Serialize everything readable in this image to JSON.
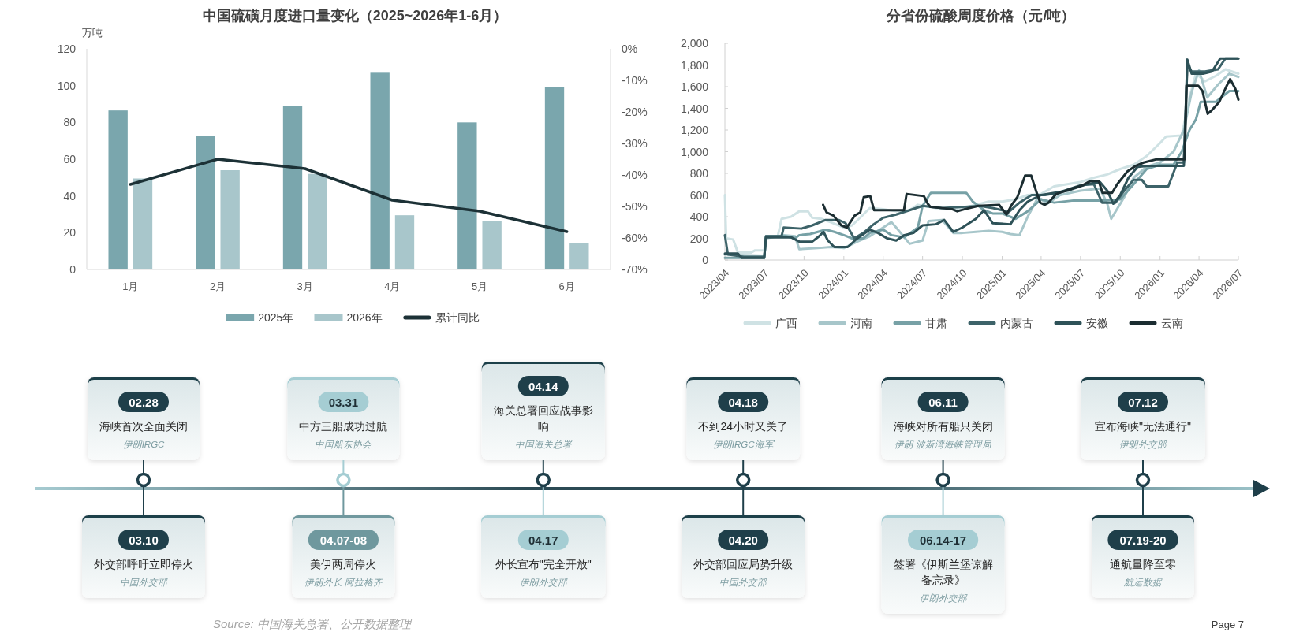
{
  "chart_data": [
    {
      "type": "bar",
      "title": "中国硫磺月度进口量变化（2025~2026年1-6月）",
      "ylabel": "万吨",
      "categories": [
        "1月",
        "2月",
        "3月",
        "4月",
        "5月",
        "6月"
      ],
      "series": [
        {
          "name": "2025年",
          "color": "#7aa6ad",
          "values": [
            86.5,
            72.5,
            89,
            107,
            80,
            99
          ]
        },
        {
          "name": "2026年",
          "color": "#a8c6cb",
          "values": [
            49.5,
            54,
            52,
            29.5,
            26.5,
            14.5
          ]
        },
        {
          "name": "累计同比",
          "type": "line",
          "axis": "y2",
          "color": "#1c3136",
          "values": [
            -43,
            -35,
            -38,
            -48,
            -51.5,
            -58
          ]
        }
      ],
      "ylim": [
        0,
        120
      ],
      "yticks": [
        0,
        20,
        40,
        60,
        80,
        100,
        120
      ],
      "y2lim": [
        -70,
        0
      ],
      "y2ticks": [
        {
          "value": 0,
          "label": "0%"
        },
        {
          "value": -10,
          "label": "-10%"
        },
        {
          "value": -20,
          "label": "-20%"
        },
        {
          "value": -30,
          "label": "-30%"
        },
        {
          "value": -40,
          "label": "-40%"
        },
        {
          "value": -50,
          "label": "-50%"
        },
        {
          "value": -60,
          "label": "-60%"
        },
        {
          "value": -70,
          "label": "-70%"
        }
      ],
      "legend": "bottom"
    },
    {
      "type": "line",
      "title": "分省份硫酸周度价格（元/吨）",
      "series": [
        {
          "name": "广西",
          "color": "#cfe2e4",
          "x": [
            "2023-04-01",
            "2023-04-04",
            "2023-04-20",
            "2023-05-01",
            "2023-06-01",
            "2023-06-10",
            "2023-07-01",
            "2023-07-05",
            "2023-08-01",
            "2023-08-10",
            "2023-09-01",
            "2023-09-20",
            "2023-10-10",
            "2023-10-20",
            "2023-11-10",
            "2023-12-01",
            "2024-01-01",
            "2024-01-20",
            "2024-02-10",
            "2024-03-01",
            "2024-04-01",
            "2024-05-01",
            "2024-06-01",
            "2024-06-20",
            "2024-08-01",
            "2024-09-01",
            "2024-10-01",
            "2024-11-01",
            "2024-12-01",
            "2025-01-01",
            "2025-02-01",
            "2025-03-01",
            "2025-04-01",
            "2025-05-01",
            "2025-07-01",
            "2025-08-01",
            "2025-09-01",
            "2025-10-01",
            "2025-11-01",
            "2025-12-01",
            "2026-01-01",
            "2026-01-15",
            "2026-02-20",
            "2026-03-10",
            "2026-03-25",
            "2026-04-15",
            "2026-05-10",
            "2026-06-01",
            "2026-07-01"
          ],
          "values": [
            600,
            200,
            190,
            70,
            70,
            90,
            90,
            210,
            215,
            380,
            400,
            450,
            450,
            390,
            380,
            350,
            300,
            320,
            400,
            480,
            470,
            450,
            460,
            510,
            480,
            470,
            480,
            510,
            540,
            540,
            560,
            600,
            610,
            680,
            720,
            760,
            790,
            840,
            880,
            960,
            1080,
            1140,
            1150,
            1500,
            1720,
            1650,
            1700,
            1760,
            1720
          ]
        },
        {
          "name": "河南",
          "color": "#a7c6ca",
          "x": [
            "2023-04-01",
            "2023-07-01",
            "2023-07-05",
            "2023-08-15",
            "2023-09-10",
            "2023-09-20",
            "2023-11-01",
            "2023-12-01",
            "2024-01-01",
            "2024-02-01",
            "2024-03-01",
            "2024-04-01",
            "2024-04-20",
            "2024-05-01",
            "2024-06-01",
            "2024-07-01",
            "2024-07-15",
            "2024-08-15",
            "2024-09-10",
            "2024-10-01",
            "2024-11-01",
            "2024-12-01",
            "2025-01-01",
            "2025-01-20",
            "2025-02-10",
            "2025-03-01",
            "2025-03-25",
            "2025-04-15",
            "2025-05-15",
            "2025-07-01",
            "2025-08-15",
            "2025-09-01",
            "2025-09-10",
            "2025-10-10",
            "2025-11-01",
            "2025-12-01",
            "2026-01-01",
            "2026-02-01",
            "2026-02-25",
            "2026-03-15",
            "2026-04-01",
            "2026-04-20",
            "2026-05-15",
            "2026-06-10",
            "2026-07-01"
          ],
          "values": [
            50,
            40,
            200,
            230,
            220,
            100,
            110,
            120,
            110,
            170,
            220,
            300,
            350,
            300,
            150,
            180,
            360,
            370,
            250,
            250,
            260,
            270,
            260,
            240,
            230,
            400,
            580,
            520,
            600,
            640,
            660,
            520,
            380,
            580,
            760,
            860,
            900,
            1000,
            1200,
            1550,
            1750,
            1500,
            1620,
            1720,
            1690
          ]
        },
        {
          "name": "甘肃",
          "color": "#77a1a6",
          "x": [
            "2023-04-01",
            "2023-07-01",
            "2023-07-05",
            "2023-08-20",
            "2023-09-10",
            "2023-09-20",
            "2023-10-15",
            "2023-11-20",
            "2023-12-10",
            "2024-01-01",
            "2024-01-20",
            "2024-02-15",
            "2024-03-01",
            "2024-04-01",
            "2024-04-20",
            "2024-05-20",
            "2024-06-20",
            "2024-07-01",
            "2024-07-20",
            "2024-10-10",
            "2024-10-25",
            "2024-11-20",
            "2024-12-10",
            "2025-01-01",
            "2025-02-01",
            "2025-03-01",
            "2025-04-01",
            "2025-05-01",
            "2025-06-15",
            "2025-08-01",
            "2025-09-01",
            "2025-10-01",
            "2025-11-01",
            "2025-12-01",
            "2026-01-01",
            "2026-02-01",
            "2026-02-20",
            "2026-03-10",
            "2026-03-25",
            "2026-04-05",
            "2026-05-10",
            "2026-06-10",
            "2026-07-01"
          ],
          "values": [
            20,
            20,
            220,
            220,
            200,
            230,
            240,
            280,
            260,
            230,
            200,
            200,
            250,
            280,
            230,
            210,
            300,
            500,
            620,
            620,
            540,
            460,
            430,
            430,
            380,
            450,
            560,
            530,
            550,
            550,
            550,
            560,
            700,
            840,
            880,
            880,
            1000,
            1200,
            1300,
            1460,
            1460,
            1560,
            1560
          ]
        },
        {
          "name": "内蒙古",
          "color": "#3d6369",
          "x": [
            "2023-04-01",
            "2023-04-08",
            "2023-05-15",
            "2023-07-01",
            "2023-07-05",
            "2023-08-10",
            "2023-08-15",
            "2023-09-25",
            "2023-10-20",
            "2023-11-20",
            "2023-12-20",
            "2024-01-05",
            "2024-01-25",
            "2024-02-15",
            "2024-03-10",
            "2024-04-01",
            "2024-05-01",
            "2024-06-01",
            "2024-07-01",
            "2024-08-15",
            "2024-10-01",
            "2024-11-10",
            "2024-12-10",
            "2025-01-01",
            "2025-01-15",
            "2025-02-10",
            "2025-03-10",
            "2025-04-10",
            "2025-05-10",
            "2025-07-01",
            "2025-08-01",
            "2025-08-20",
            "2025-09-20",
            "2025-10-10",
            "2025-11-01",
            "2025-11-20",
            "2025-12-01",
            "2026-01-20",
            "2026-02-10",
            "2026-02-25",
            "2026-03-05",
            "2026-03-15",
            "2026-04-15",
            "2026-05-15",
            "2026-06-01",
            "2026-07-01"
          ],
          "values": [
            230,
            50,
            30,
            30,
            220,
            220,
            300,
            290,
            320,
            370,
            370,
            340,
            200,
            250,
            330,
            390,
            420,
            460,
            500,
            480,
            490,
            500,
            480,
            460,
            440,
            530,
            600,
            600,
            620,
            690,
            700,
            530,
            530,
            640,
            740,
            740,
            680,
            680,
            900,
            900,
            1800,
            1740,
            1740,
            1760,
            1860,
            1860
          ]
        },
        {
          "name": "安徽",
          "color": "#2e5258",
          "x": [
            "2023-04-01",
            "2023-05-01",
            "2023-05-10",
            "2023-07-01",
            "2023-07-05",
            "2023-09-01",
            "2023-09-20",
            "2023-10-20",
            "2023-11-05",
            "2023-11-15",
            "2023-11-25",
            "2023-12-10",
            "2024-01-10",
            "2024-02-01",
            "2024-03-01",
            "2024-03-20",
            "2024-04-10",
            "2024-05-01",
            "2024-05-20",
            "2024-06-10",
            "2024-07-01",
            "2024-08-01",
            "2024-08-20",
            "2024-09-10",
            "2024-10-01",
            "2024-11-01",
            "2024-11-20",
            "2024-12-10",
            "2025-01-20",
            "2025-02-10",
            "2025-03-01",
            "2025-04-01",
            "2025-06-01",
            "2025-07-15",
            "2025-08-15",
            "2025-09-01",
            "2025-09-15",
            "2025-10-01",
            "2025-10-20",
            "2025-11-10",
            "2025-12-10",
            "2026-02-25",
            "2026-03-05",
            "2026-03-15",
            "2026-04-10",
            "2026-05-01",
            "2026-05-20",
            "2026-07-01"
          ],
          "values": [
            60,
            60,
            20,
            20,
            210,
            210,
            170,
            170,
            220,
            260,
            180,
            120,
            120,
            200,
            280,
            250,
            200,
            180,
            230,
            250,
            320,
            330,
            370,
            260,
            300,
            380,
            460,
            340,
            330,
            460,
            540,
            600,
            640,
            700,
            720,
            640,
            520,
            600,
            760,
            860,
            870,
            870,
            1850,
            1720,
            1720,
            1740,
            1860,
            1860
          ]
        },
        {
          "name": "云南",
          "color": "#1b2d31",
          "x": [
            "2023-11-14",
            "2023-11-22",
            "2023-12-08",
            "2023-12-26",
            "2024-01-08",
            "2024-01-26",
            "2024-02-08",
            "2024-02-16",
            "2024-03-02",
            "2024-03-11",
            "2024-05-19",
            "2024-05-25",
            "2024-07-04",
            "2024-07-13",
            "2024-07-19",
            "2024-09-07",
            "2024-09-19",
            "2024-10-07",
            "2024-11-07",
            "2024-12-25",
            "2025-01-11",
            "2025-01-23",
            "2025-02-05",
            "2025-02-23",
            "2025-03-09",
            "2025-03-21",
            "2025-03-30",
            "2025-04-09",
            "2025-04-18",
            "2025-05-06",
            "2025-06-12",
            "2025-07-06",
            "2025-07-24",
            "2025-08-12",
            "2025-08-21",
            "2025-09-12",
            "2025-09-24",
            "2025-10-18",
            "2025-11-06",
            "2025-11-24",
            "2025-12-24",
            "2026-02-27",
            "2026-03-03",
            "2026-03-30",
            "2026-04-09",
            "2026-04-21",
            "2026-04-30",
            "2026-05-18",
            "2026-06-03",
            "2026-06-12",
            "2026-06-24",
            "2026-07-01"
          ],
          "values": [
            510,
            440,
            410,
            320,
            300,
            410,
            440,
            580,
            590,
            460,
            460,
            610,
            590,
            520,
            490,
            470,
            450,
            470,
            500,
            510,
            420,
            510,
            580,
            780,
            780,
            630,
            530,
            510,
            530,
            610,
            660,
            690,
            730,
            730,
            620,
            620,
            700,
            820,
            870,
            900,
            930,
            930,
            1610,
            1610,
            1560,
            1350,
            1380,
            1460,
            1600,
            1670,
            1580,
            1480
          ]
        }
      ],
      "xlim": [
        "2023-04",
        "2026-07"
      ],
      "xticks": [
        {
          "value": "2023-04",
          "label": "2023/04"
        },
        {
          "value": "2023-07",
          "label": "2023/07"
        },
        {
          "value": "2023-10",
          "label": "2023/10"
        },
        {
          "value": "2024-01",
          "label": "2024/01"
        },
        {
          "value": "2024-04",
          "label": "2024/04"
        },
        {
          "value": "2024-07",
          "label": "2024/07"
        },
        {
          "value": "2024-10",
          "label": "2024/10"
        },
        {
          "value": "2025-01",
          "label": "2025/01"
        },
        {
          "value": "2025-04",
          "label": "2025/04"
        },
        {
          "value": "2025-07",
          "label": "2025/07"
        },
        {
          "value": "2025-10",
          "label": "2025/10"
        },
        {
          "value": "2026-01",
          "label": "2026/01"
        },
        {
          "value": "2026-04",
          "label": "2026/04"
        },
        {
          "value": "2026-07",
          "label": "2026/07"
        }
      ],
      "ylim": [
        0,
        2000
      ],
      "yticks": [
        0,
        200,
        400,
        600,
        800,
        {
          "value": 1000,
          "label": "1,000"
        },
        {
          "value": 1200,
          "label": "1,200"
        },
        {
          "value": 1400,
          "label": "1,400"
        },
        {
          "value": 1600,
          "label": "1,600"
        },
        {
          "value": 1800,
          "label": "1,800"
        },
        {
          "value": 2000,
          "label": "2,000"
        }
      ],
      "legend": "bottom"
    },
    {
      "type": "other",
      "categories": [
        "02.28",
        "03.10",
        "03.31",
        "04.07-08",
        "04.14",
        "04.17",
        "04.18",
        "04.20",
        "06.11",
        "06.14-17",
        "07.12",
        "07.19-20"
      ],
      "colors": [
        "#1f3f4a",
        "#1f3f4a",
        "#a5cdd3",
        "#6f989e",
        "#1f3f4a",
        "#a5cdd3",
        "#1f3f4a",
        "#1f3f4a",
        "#1f3f4a",
        "#a5cdd3",
        "#1f3f4a",
        "#1f3f4a"
      ],
      "annotations": [
        "海峡首次全面关闭",
        "伊朗IRGC",
        "外交部呼吁立即停火",
        "中国外交部",
        "中方三船成功过航",
        "中国船东协会",
        "美伊两周停火",
        "伊朗外长 阿拉格齐",
        "海关总署回应战事影响",
        "中国海关总署",
        "外长宣布\"完全开放\"",
        "伊朗外交部",
        "不到24小时又关了",
        "伊朗IRGC海军",
        "外交部回应局势升级",
        "中国外交部",
        "海峡对所有船只关闭",
        "伊朗 波斯湾海峡管理局",
        "签署《伊斯兰堡谅解备忘录》",
        "伊朗外交部",
        "宣布海峡\"无法通行\"",
        "伊朗外交部",
        "通航量降至零",
        "航运数据"
      ]
    },
    {
      "type": "other",
      "annotations": [
        "Source: 中国海关总署、公开数据整理",
        "Page 7"
      ]
    }
  ]
}
